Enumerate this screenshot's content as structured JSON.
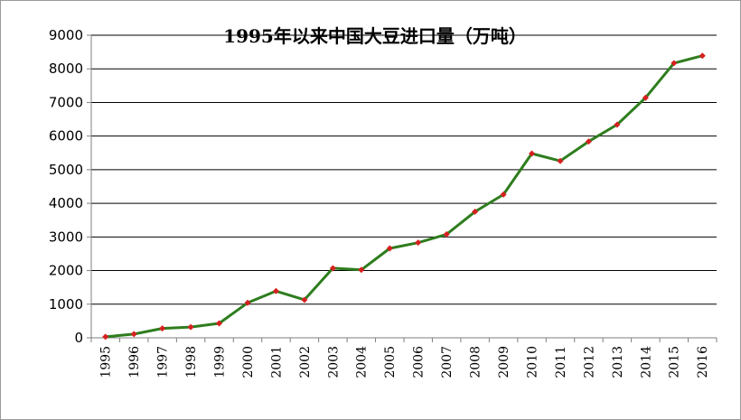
{
  "chart_data": {
    "type": "line",
    "title": "1995年以来中国大豆进口量（万吨）",
    "xlabel": "",
    "ylabel": "",
    "x": [
      "1995",
      "1996",
      "1997",
      "1998",
      "1999",
      "2000",
      "2001",
      "2002",
      "2003",
      "2004",
      "2005",
      "2006",
      "2007",
      "2008",
      "2009",
      "2010",
      "2011",
      "2012",
      "2013",
      "2014",
      "2015",
      "2016"
    ],
    "series": [
      {
        "values": [
          30,
          110,
          280,
          320,
          430,
          1040,
          1390,
          1130,
          2070,
          2020,
          2660,
          2830,
          3080,
          3750,
          4260,
          5480,
          5260,
          5840,
          6340,
          7140,
          8170,
          8390
        ]
      }
    ],
    "ylim": [
      0,
      9000
    ],
    "yticks": [
      0,
      1000,
      2000,
      3000,
      4000,
      5000,
      6000,
      7000,
      8000,
      9000
    ],
    "grid": "horizontal",
    "legend": "none",
    "colors": {
      "line": "#2e7d1e",
      "marker": "#d62020",
      "grid": "#000000",
      "axis": "#7f7f7f"
    }
  }
}
